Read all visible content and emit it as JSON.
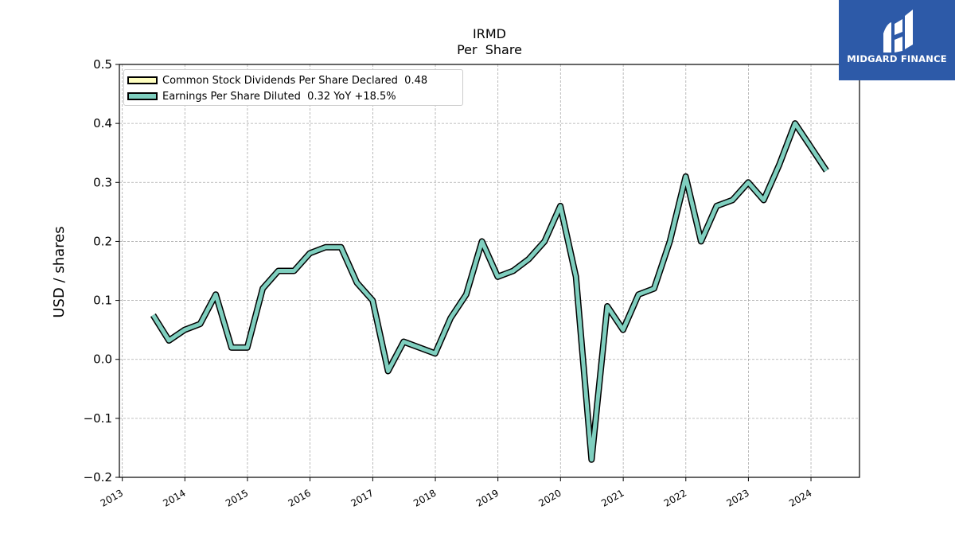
{
  "chart_data": {
    "type": "line",
    "title": "IRMD",
    "subtitle": "Per  Share",
    "xlabel": "",
    "ylabel": "USD / shares",
    "ylim": [
      -0.2,
      0.5
    ],
    "yticks": [
      -0.2,
      -0.1,
      0.0,
      0.1,
      0.2,
      0.3,
      0.4,
      0.5
    ],
    "ytick_labels": [
      "−0.2",
      "−0.1",
      "0.0",
      "0.1",
      "0.2",
      "0.3",
      "0.4",
      "0.5"
    ],
    "xlim": [
      "2012-12-15",
      "2024-10-10"
    ],
    "xticks": [
      "2013-01-01",
      "2014-01-01",
      "2015-01-01",
      "2016-01-01",
      "2017-01-01",
      "2018-01-01",
      "2019-01-01",
      "2020-01-01",
      "2021-01-01",
      "2022-01-01",
      "2023-01-01",
      "2024-01-01"
    ],
    "xtick_labels": [
      "2013",
      "2014",
      "2015",
      "2016",
      "2017",
      "2018",
      "2019",
      "2020",
      "2021",
      "2022",
      "2023",
      "2024"
    ],
    "grid": true,
    "legend_position": "top-left",
    "series": [
      {
        "name": "Common Stock Dividends Per Share Declared",
        "legend_label": "Common Stock Dividends Per Share Declared  0.48",
        "color": "#ffffc0",
        "values": []
      },
      {
        "name": "Earnings Per Share Diluted",
        "legend_label": "Earnings Per Share Diluted  0.32 YoY +18.5%",
        "color": "#7fcfbf",
        "x": [
          "2013-06-30",
          "2013-09-30",
          "2013-12-31",
          "2014-03-31",
          "2014-06-30",
          "2014-09-30",
          "2014-12-31",
          "2015-03-31",
          "2015-06-30",
          "2015-09-30",
          "2015-12-31",
          "2016-03-31",
          "2016-06-30",
          "2016-09-30",
          "2016-12-31",
          "2017-03-31",
          "2017-06-30",
          "2017-09-30",
          "2017-12-31",
          "2018-03-31",
          "2018-06-30",
          "2018-09-30",
          "2018-12-31",
          "2019-03-31",
          "2019-06-30",
          "2019-09-30",
          "2019-12-31",
          "2020-03-31",
          "2020-06-30",
          "2020-09-30",
          "2020-12-31",
          "2021-03-31",
          "2021-06-30",
          "2021-09-30",
          "2021-12-31",
          "2022-03-31",
          "2022-06-30",
          "2022-09-30",
          "2022-12-31",
          "2023-03-31",
          "2023-06-30",
          "2023-09-30",
          "2023-12-31",
          "2024-03-31"
        ],
        "values": [
          0.075,
          0.032,
          0.05,
          0.06,
          0.11,
          0.02,
          0.02,
          0.12,
          0.15,
          0.15,
          0.18,
          0.19,
          0.19,
          0.13,
          0.1,
          -0.02,
          0.03,
          0.02,
          0.01,
          0.07,
          0.11,
          0.2,
          0.14,
          0.15,
          0.17,
          0.2,
          0.26,
          0.14,
          -0.17,
          0.09,
          0.05,
          0.11,
          0.12,
          0.2,
          0.31,
          0.2,
          0.26,
          0.27,
          0.3,
          0.27,
          0.33,
          0.4,
          0.36,
          0.32
        ]
      }
    ]
  },
  "logo": {
    "text": "MIDGARD FINANCE",
    "background": "#2d5aa8"
  }
}
